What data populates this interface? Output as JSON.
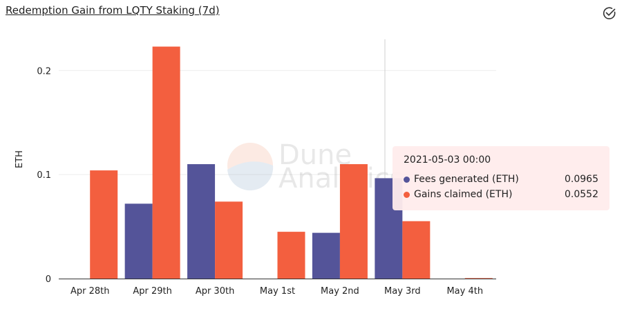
{
  "header": {
    "title": "Redemption Gain from LQTY Staking (7d)"
  },
  "icons": {
    "check": "check-circle-icon"
  },
  "watermark": {
    "line1": "Dune",
    "line2": "Analytics"
  },
  "tooltip": {
    "date": "2021-05-03 00:00",
    "rows": [
      {
        "name": "Fees generated (ETH)",
        "value": "0.0965",
        "color": "#545499"
      },
      {
        "name": "Gains claimed (ETH)",
        "value": "0.0552",
        "color": "#f35f3f"
      }
    ]
  },
  "chart_data": {
    "type": "bar",
    "ylabel": "ETH",
    "xlabel": "",
    "ylim": [
      0,
      0.23
    ],
    "yticks": [
      0,
      0.1,
      0.2
    ],
    "ytick_labels": [
      "0",
      "0.1",
      "0.2"
    ],
    "categories": [
      "Apr 28th",
      "Apr 29th",
      "Apr 30th",
      "May 1st",
      "May 2nd",
      "May 3rd",
      "May 4th"
    ],
    "series": [
      {
        "name": "Fees generated (ETH)",
        "color": "#545499",
        "values": [
          0,
          0.072,
          0.11,
          0,
          0.044,
          0.0965,
          0
        ]
      },
      {
        "name": "Gains claimed (ETH)",
        "color": "#f35f3f",
        "values": [
          0.104,
          0.223,
          0.074,
          0.045,
          0.11,
          0.0552,
          0.0005
        ]
      }
    ],
    "grid": true,
    "hover_category": "May 3rd"
  }
}
